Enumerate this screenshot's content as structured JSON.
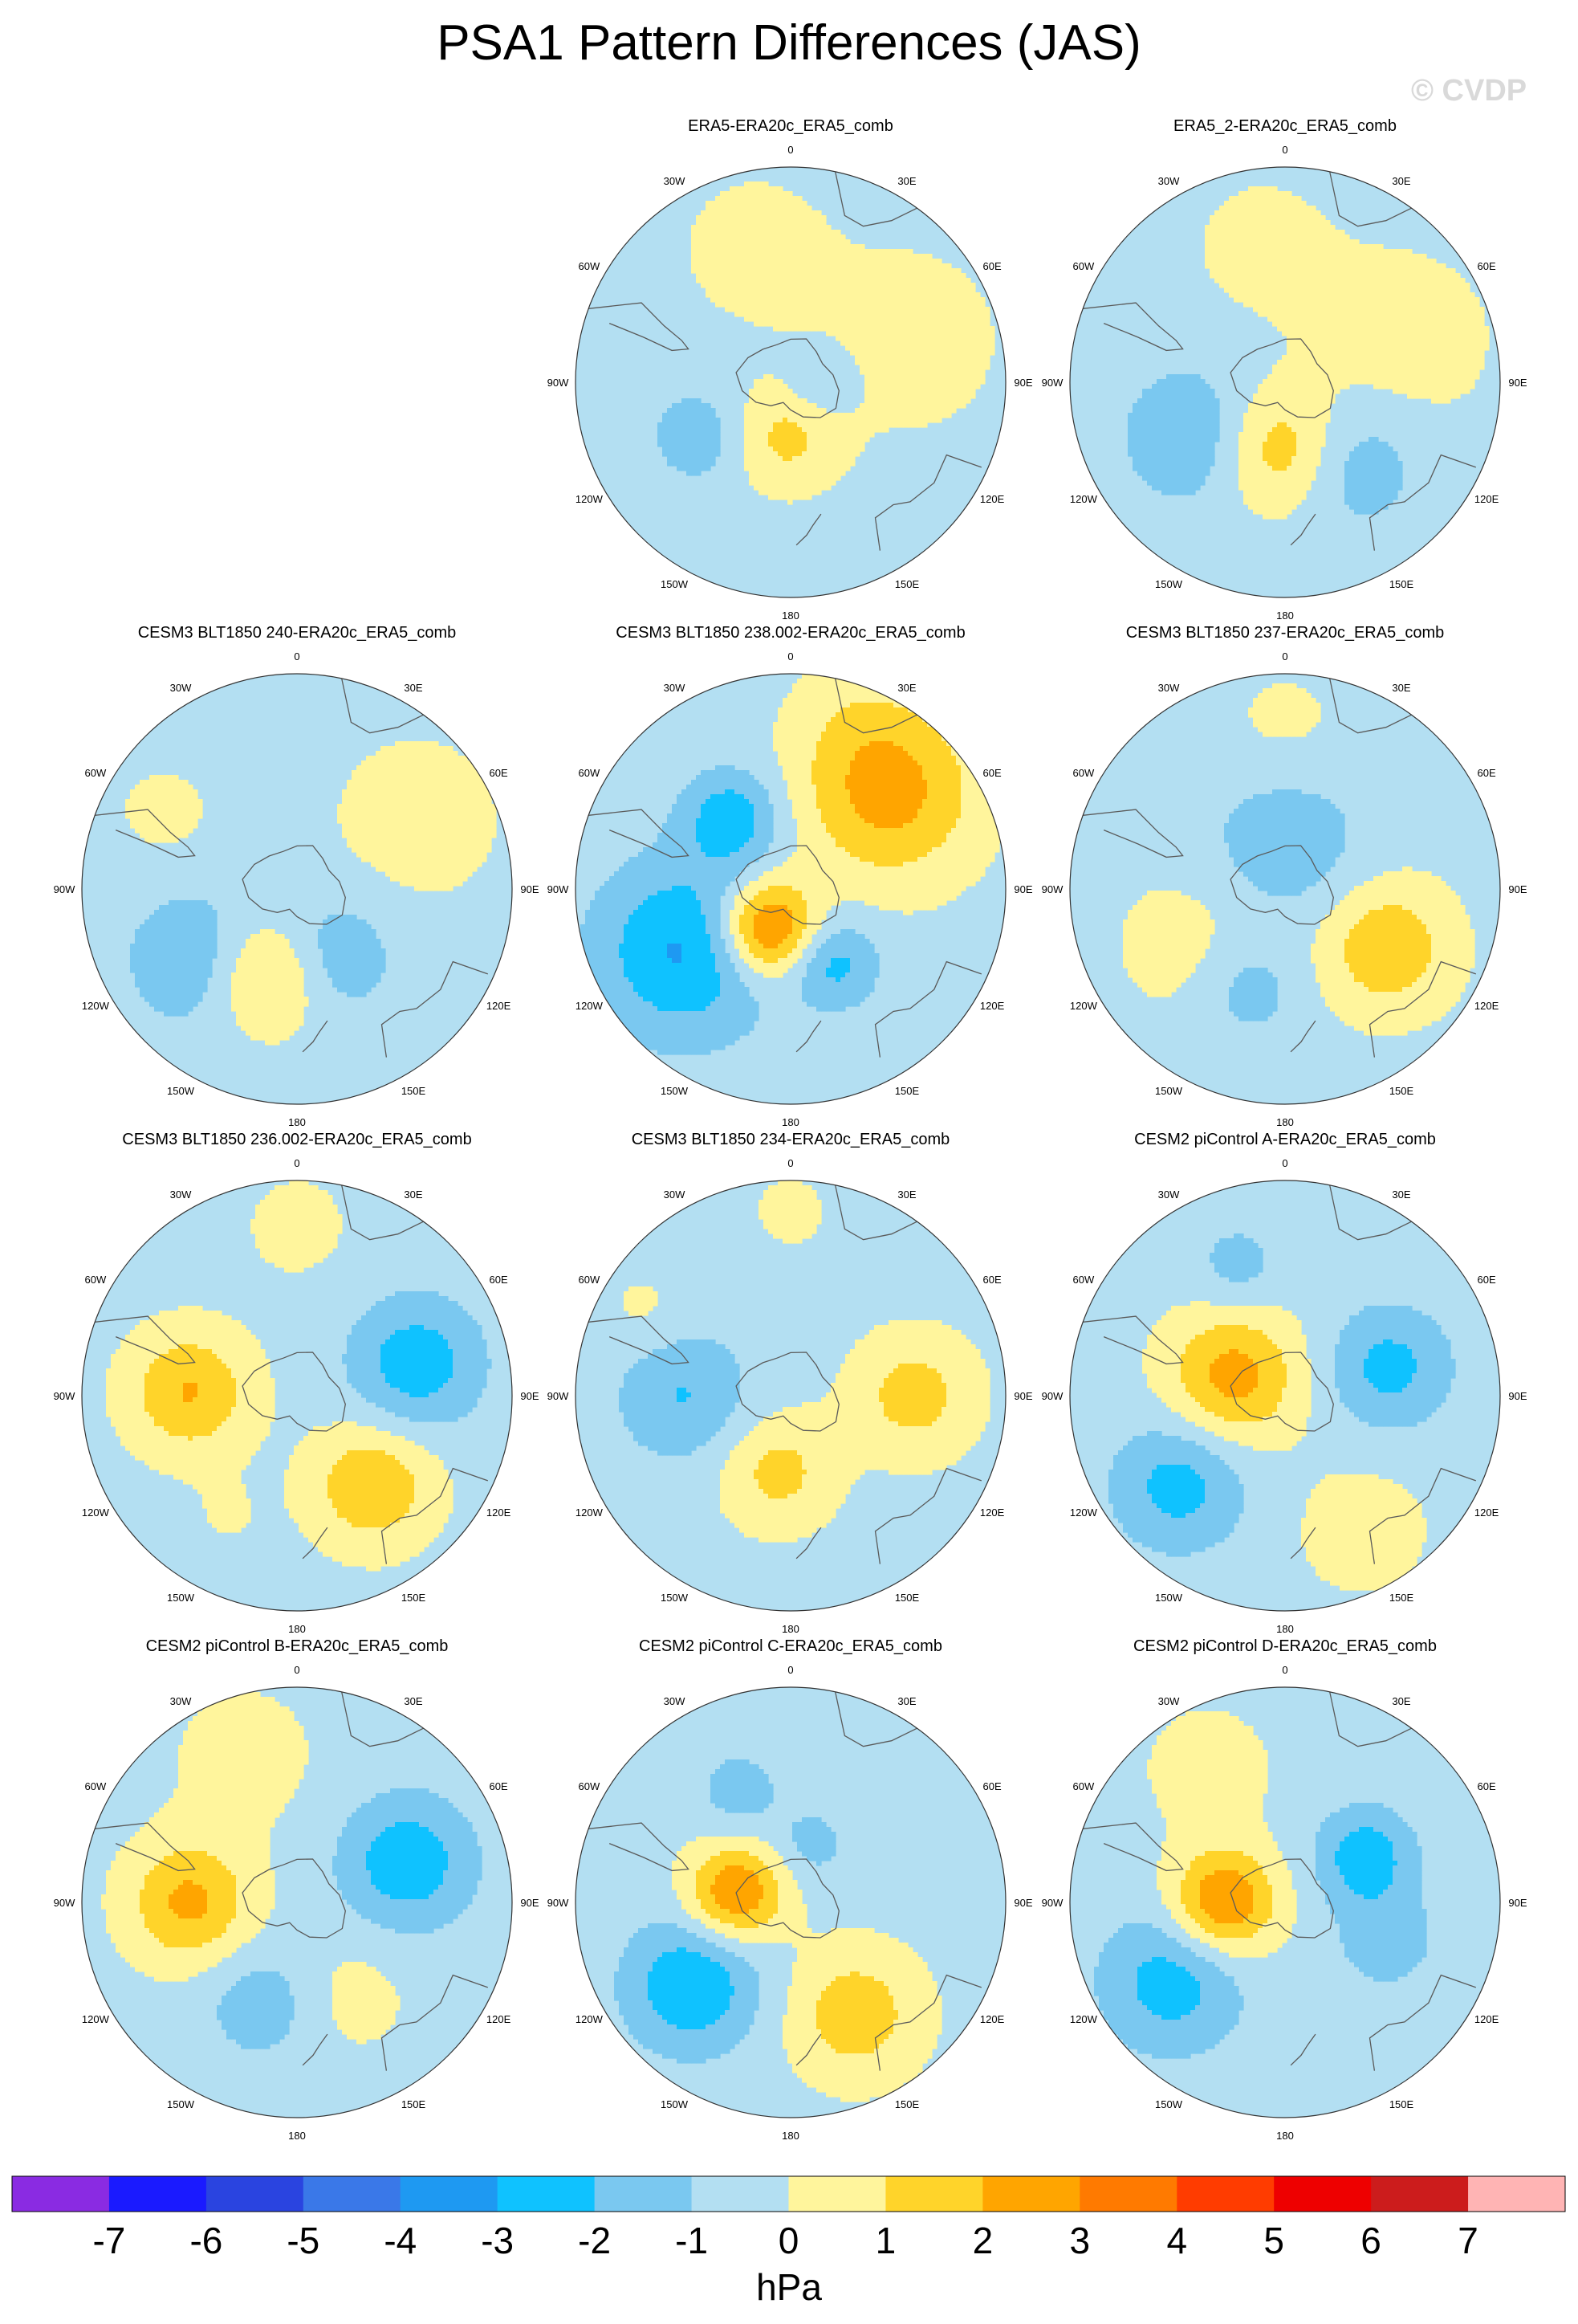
{
  "figure": {
    "title": "PSA1 Pattern Differences (JAS)",
    "watermark": "© CVDP"
  },
  "lon_labels": [
    "0",
    "30E",
    "60E",
    "90E",
    "120E",
    "150E",
    "180",
    "150W",
    "120W",
    "90W",
    "60W",
    "30W"
  ],
  "chart_data": [
    {
      "type": "heatmap",
      "projection": "south-polar-stereographic",
      "title": "ERA5-ERA20c_ERA5_comb",
      "units": "hPa",
      "anomalies": [
        {
          "lon": 70,
          "lat": -50,
          "v": 0.8,
          "spread": 22
        },
        {
          "lon": -15,
          "lat": -45,
          "v": 0.7,
          "spread": 18
        },
        {
          "lon": -175,
          "lat": -72,
          "v": 1.6,
          "spread": 12
        },
        {
          "lon": -120,
          "lat": -55,
          "v": -1.3,
          "spread": 11
        },
        {
          "lon": 90,
          "lat": -80,
          "v": -1.1,
          "spread": 8
        }
      ]
    },
    {
      "type": "heatmap",
      "projection": "south-polar-stereographic",
      "title": "ERA5_2-ERA20c_ERA5_comb",
      "units": "hPa",
      "anomalies": [
        {
          "lon": 70,
          "lat": -50,
          "v": 0.8,
          "spread": 22
        },
        {
          "lon": -10,
          "lat": -45,
          "v": 0.6,
          "spread": 18
        },
        {
          "lon": -175,
          "lat": -68,
          "v": 2.2,
          "spread": 14
        },
        {
          "lon": -120,
          "lat": -55,
          "v": -1.6,
          "spread": 16
        },
        {
          "lon": 140,
          "lat": -55,
          "v": -1.4,
          "spread": 15
        }
      ]
    },
    {
      "type": "heatmap",
      "projection": "south-polar-stereographic",
      "title": "CESM3 BLT1850 240-ERA20c_ERA5_comb",
      "units": "hPa",
      "anomalies": [
        {
          "lon": 60,
          "lat": -45,
          "v": 0.8,
          "spread": 20
        },
        {
          "lon": -160,
          "lat": -60,
          "v": 2.2,
          "spread": 13
        },
        {
          "lon": -125,
          "lat": -50,
          "v": -1.6,
          "spread": 16
        },
        {
          "lon": 150,
          "lat": -65,
          "v": -1.4,
          "spread": 14
        },
        {
          "lon": -60,
          "lat": -40,
          "v": 0.6,
          "spread": 12
        }
      ]
    },
    {
      "type": "heatmap",
      "projection": "south-polar-stereographic",
      "title": "CESM3 BLT1850 238.002-ERA20c_ERA5_comb",
      "units": "hPa",
      "anomalies": [
        {
          "lon": 45,
          "lat": -45,
          "v": 2.8,
          "spread": 20
        },
        {
          "lon": -150,
          "lat": -75,
          "v": 4.2,
          "spread": 11
        },
        {
          "lon": -120,
          "lat": -50,
          "v": -2.8,
          "spread": 20
        },
        {
          "lon": -40,
          "lat": -60,
          "v": -2.3,
          "spread": 11
        },
        {
          "lon": 150,
          "lat": -62,
          "v": -2.0,
          "spread": 10
        },
        {
          "lon": 20,
          "lat": -30,
          "v": 0.5,
          "spread": 14
        }
      ]
    },
    {
      "type": "heatmap",
      "projection": "south-polar-stereographic",
      "title": "CESM3 BLT1850 237-ERA20c_ERA5_comb",
      "units": "hPa",
      "anomalies": [
        {
          "lon": 0,
          "lat": -75,
          "v": -1.4,
          "spread": 18
        },
        {
          "lon": 120,
          "lat": -52,
          "v": 2.2,
          "spread": 15
        },
        {
          "lon": -120,
          "lat": -55,
          "v": 0.8,
          "spread": 18
        },
        {
          "lon": -160,
          "lat": -55,
          "v": -1.2,
          "spread": 12
        },
        {
          "lon": 0,
          "lat": -38,
          "v": 0.6,
          "spread": 15
        }
      ]
    },
    {
      "type": "heatmap",
      "projection": "south-polar-stereographic",
      "title": "CESM3 BLT1850 236.002-ERA20c_ERA5_comb",
      "units": "hPa",
      "anomalies": [
        {
          "lon": -88,
          "lat": -55,
          "v": 2.4,
          "spread": 14
        },
        {
          "lon": 75,
          "lat": -50,
          "v": -2.3,
          "spread": 15
        },
        {
          "lon": 140,
          "lat": -52,
          "v": 2.3,
          "spread": 14
        },
        {
          "lon": 0,
          "lat": -35,
          "v": 0.6,
          "spread": 14
        },
        {
          "lon": -150,
          "lat": -45,
          "v": 0.4,
          "spread": 10
        }
      ]
    },
    {
      "type": "heatmap",
      "projection": "south-polar-stereographic",
      "title": "CESM3 BLT1850 234-ERA20c_ERA5_comb",
      "units": "hPa",
      "anomalies": [
        {
          "lon": -90,
          "lat": -55,
          "v": -1.7,
          "spread": 15
        },
        {
          "lon": 90,
          "lat": -50,
          "v": 1.8,
          "spread": 14
        },
        {
          "lon": -170,
          "lat": -65,
          "v": 1.7,
          "spread": 13
        },
        {
          "lon": 0,
          "lat": -30,
          "v": 0.5,
          "spread": 12
        },
        {
          "lon": -60,
          "lat": -35,
          "v": 0.6,
          "spread": 10
        }
      ]
    },
    {
      "type": "heatmap",
      "projection": "south-polar-stereographic",
      "title": "CESM2 piControl A-ERA20c_ERA5_comb",
      "units": "hPa",
      "anomalies": [
        {
          "lon": -70,
          "lat": -72,
          "v": 2.8,
          "spread": 15
        },
        {
          "lon": 75,
          "lat": -55,
          "v": -2.0,
          "spread": 14
        },
        {
          "lon": -130,
          "lat": -45,
          "v": -2.1,
          "spread": 15
        },
        {
          "lon": -20,
          "lat": -45,
          "v": -1.1,
          "spread": 10
        },
        {
          "lon": 150,
          "lat": -40,
          "v": 0.8,
          "spread": 16
        }
      ]
    },
    {
      "type": "heatmap",
      "projection": "south-polar-stereographic",
      "title": "CESM2 piControl B-ERA20c_ERA5_comb",
      "units": "hPa",
      "anomalies": [
        {
          "lon": -90,
          "lat": -55,
          "v": 2.6,
          "spread": 14
        },
        {
          "lon": 70,
          "lat": -52,
          "v": -2.4,
          "spread": 15
        },
        {
          "lon": -160,
          "lat": -55,
          "v": -1.3,
          "spread": 13
        },
        {
          "lon": -20,
          "lat": -40,
          "v": 0.7,
          "spread": 18
        },
        {
          "lon": 150,
          "lat": -55,
          "v": 0.7,
          "spread": 14
        }
      ]
    },
    {
      "type": "heatmap",
      "projection": "south-polar-stereographic",
      "title": "CESM2 piControl C-ERA20c_ERA5_comb",
      "units": "hPa",
      "anomalies": [
        {
          "lon": -80,
          "lat": -72,
          "v": 3.4,
          "spread": 11
        },
        {
          "lon": -130,
          "lat": -48,
          "v": -2.6,
          "spread": 15
        },
        {
          "lon": 150,
          "lat": -48,
          "v": 2.0,
          "spread": 15
        },
        {
          "lon": -25,
          "lat": -50,
          "v": -1.1,
          "spread": 10
        },
        {
          "lon": 20,
          "lat": -70,
          "v": -1.0,
          "spread": 9
        }
      ]
    },
    {
      "type": "heatmap",
      "projection": "south-polar-stereographic",
      "title": "CESM2 piControl D-ERA20c_ERA5_comb",
      "units": "hPa",
      "anomalies": [
        {
          "lon": -90,
          "lat": -70,
          "v": 3.5,
          "spread": 12
        },
        {
          "lon": 60,
          "lat": -60,
          "v": -2.3,
          "spread": 11
        },
        {
          "lon": -125,
          "lat": -45,
          "v": -2.2,
          "spread": 16
        },
        {
          "lon": 110,
          "lat": -55,
          "v": -1.2,
          "spread": 12
        },
        {
          "lon": -30,
          "lat": -40,
          "v": 0.8,
          "spread": 15
        }
      ]
    }
  ],
  "colorbar": {
    "label": "hPa",
    "ticks": [
      "-7",
      "-6",
      "-5",
      "-4",
      "-3",
      "-2",
      "-1",
      "0",
      "1",
      "2",
      "3",
      "4",
      "5",
      "6",
      "7"
    ],
    "levels": [
      -7,
      -6,
      -5,
      -4,
      -3,
      -2,
      -1,
      0,
      1,
      2,
      3,
      4,
      5,
      6,
      7
    ],
    "colors": [
      "#8a2be2",
      "#1a1aff",
      "#2a44e0",
      "#3a78e8",
      "#1e99f2",
      "#0fc2ff",
      "#7ac8f0",
      "#b3dff2",
      "#fff59c",
      "#ffd42a",
      "#ffa500",
      "#ff7a00",
      "#ff3c00",
      "#ee0000",
      "#cc1c1c",
      "#ffb4b4"
    ]
  }
}
